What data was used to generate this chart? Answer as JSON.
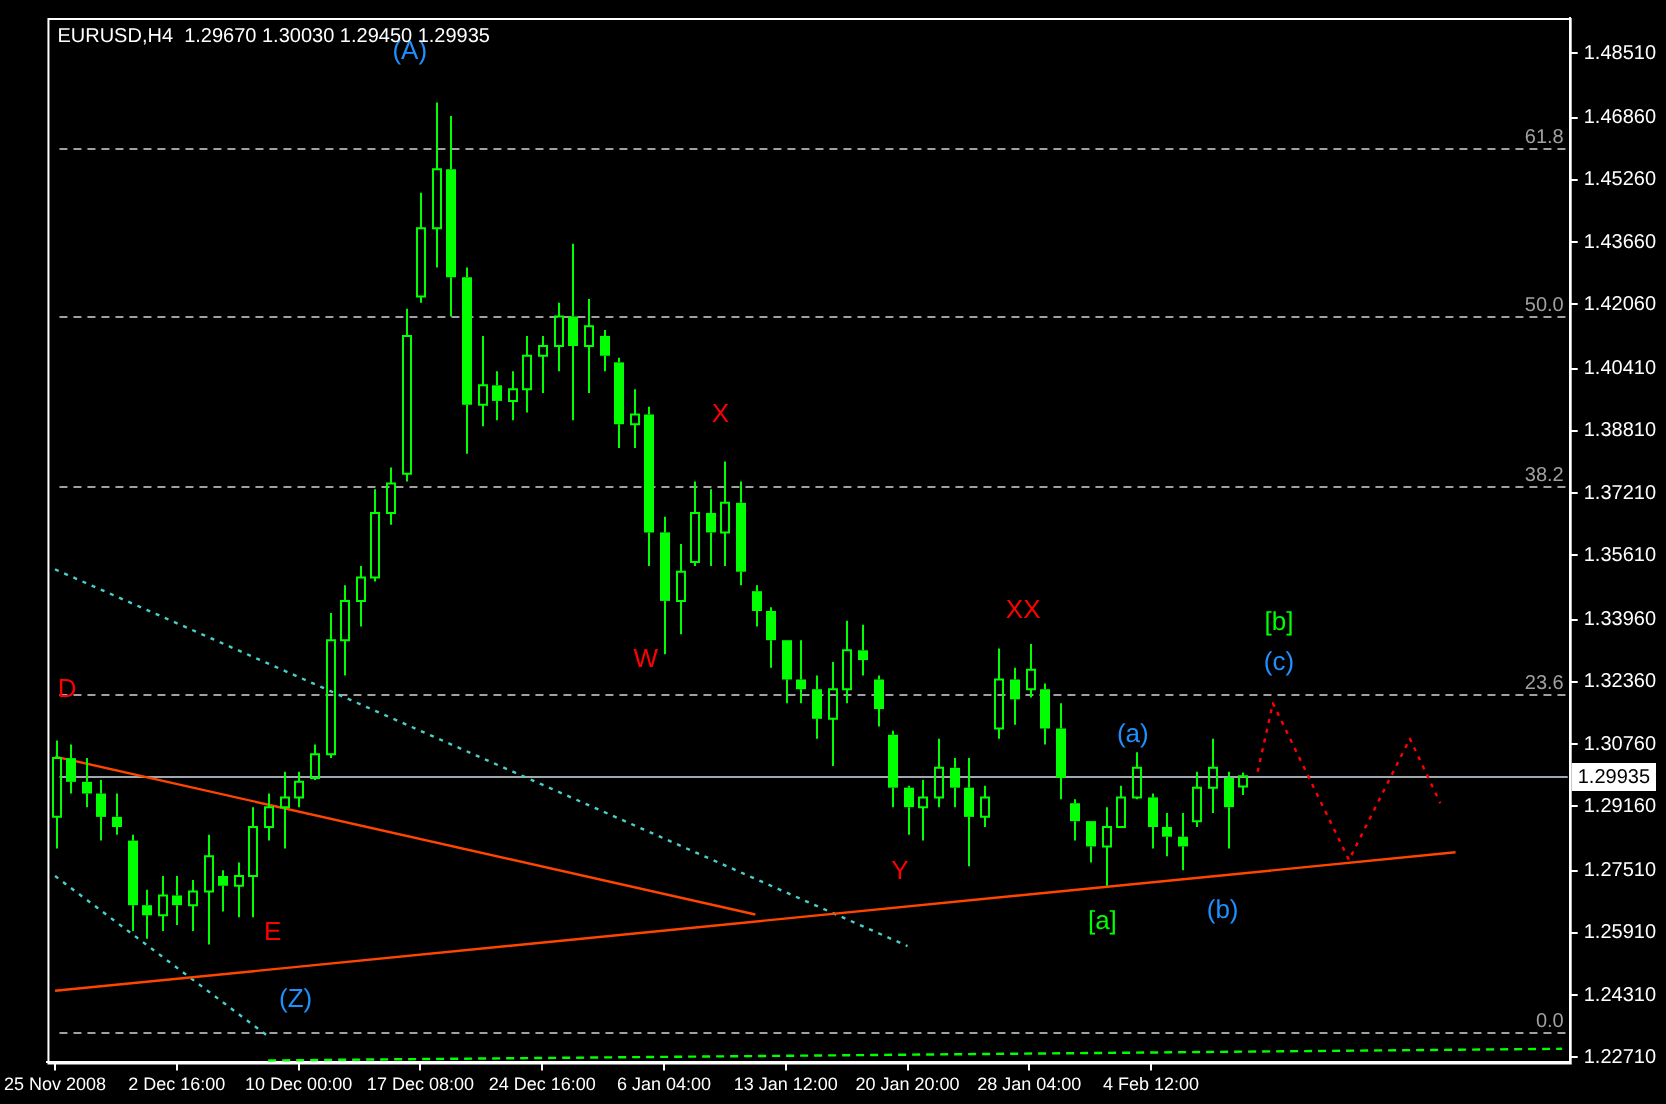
{
  "chart_data": {
    "type": "candlestick",
    "title": "EURUSD,H4  1.29670 1.30030 1.29450 1.29935",
    "color": "#00ff00",
    "categories": [
      "25 Nov 2008",
      null,
      null,
      null,
      null,
      null,
      null,
      null,
      "2 Dec 16:00",
      null,
      null,
      null,
      null,
      null,
      null,
      null,
      "10 Dec 00:00",
      null,
      null,
      null,
      null,
      null,
      null,
      null,
      "17 Dec 08:00",
      null,
      null,
      null,
      null,
      null,
      null,
      null,
      "24 Dec 16:00",
      null,
      null,
      null,
      null,
      null,
      null,
      null,
      "6 Jan 04:00",
      null,
      null,
      null,
      null,
      null,
      null,
      null,
      "13 Jan 12:00",
      null,
      null,
      null,
      null,
      null,
      null,
      null,
      "20 Jan 20:00",
      null,
      null,
      null,
      null,
      null,
      null,
      null,
      "28 Jan 04:00",
      null,
      null,
      null,
      null,
      null,
      null,
      null,
      "4 Feb 12:00",
      null,
      null,
      null,
      null,
      null,
      null,
      null,
      null,
      null,
      null,
      null,
      null,
      null,
      null,
      null,
      null,
      null,
      null,
      null,
      null,
      null,
      null,
      null,
      null,
      null,
      null,
      null
    ],
    "ohlc": [
      [
        1.2889,
        1.3085,
        1.2808,
        1.304
      ],
      [
        1.304,
        1.3075,
        1.2949,
        1.2979
      ],
      [
        1.2979,
        1.304,
        1.2914,
        1.2949
      ],
      [
        1.2949,
        1.2984,
        1.2828,
        1.2889
      ],
      [
        1.2889,
        1.2949,
        1.2843,
        1.2863
      ],
      [
        1.2828,
        1.2843,
        1.2596,
        1.2662
      ],
      [
        1.2662,
        1.2702,
        1.2576,
        1.2636
      ],
      [
        1.2636,
        1.2737,
        1.2596,
        1.2687
      ],
      [
        1.2687,
        1.2737,
        1.2611,
        1.2662
      ],
      [
        1.2662,
        1.2727,
        1.2596,
        1.2697
      ],
      [
        1.2697,
        1.2843,
        1.2561,
        1.2788
      ],
      [
        1.2737,
        1.2752,
        1.2646,
        1.2712
      ],
      [
        1.2712,
        1.2772,
        1.2631,
        1.2737
      ],
      [
        1.2737,
        1.2914,
        1.2631,
        1.2863
      ],
      [
        1.2863,
        1.2949,
        1.2828,
        1.2914
      ],
      [
        1.2914,
        1.3005,
        1.2808,
        1.2939
      ],
      [
        1.2939,
        1.3005,
        1.2914,
        1.2979
      ],
      [
        1.2989,
        1.3075,
        1.2984,
        1.305
      ],
      [
        1.305,
        1.3413,
        1.304,
        1.3343
      ],
      [
        1.3343,
        1.3484,
        1.3252,
        1.3444
      ],
      [
        1.3444,
        1.3534,
        1.3378,
        1.3504
      ],
      [
        1.3504,
        1.3731,
        1.3494,
        1.367
      ],
      [
        1.367,
        1.3787,
        1.364,
        1.3746
      ],
      [
        1.3771,
        1.4195,
        1.3751,
        1.4125
      ],
      [
        1.4226,
        1.4493,
        1.421,
        1.4402
      ],
      [
        1.4402,
        1.4725,
        1.4301,
        1.4553
      ],
      [
        1.4553,
        1.469,
        1.4175,
        1.4276
      ],
      [
        1.4276,
        1.4301,
        1.3822,
        1.3948
      ],
      [
        1.3948,
        1.4125,
        1.3893,
        1.3998
      ],
      [
        1.3998,
        1.4034,
        1.3908,
        1.3958
      ],
      [
        1.3958,
        1.4034,
        1.3908,
        1.3988
      ],
      [
        1.3988,
        1.4125,
        1.3928,
        1.4074
      ],
      [
        1.4074,
        1.4125,
        1.3978,
        1.4099
      ],
      [
        1.4099,
        1.421,
        1.4034,
        1.4175
      ],
      [
        1.4175,
        1.4362,
        1.3908,
        1.4099
      ],
      [
        1.4099,
        1.422,
        1.3978,
        1.415
      ],
      [
        1.4125,
        1.414,
        1.4034,
        1.4074
      ],
      [
        1.4057,
        1.4069,
        1.3837,
        1.3898
      ],
      [
        1.3898,
        1.3988,
        1.3837,
        1.3923
      ],
      [
        1.3923,
        1.3943,
        1.3534,
        1.362
      ],
      [
        1.362,
        1.366,
        1.3307,
        1.3444
      ],
      [
        1.3444,
        1.359,
        1.3358,
        1.3519
      ],
      [
        1.3544,
        1.3751,
        1.3534,
        1.367
      ],
      [
        1.367,
        1.3731,
        1.3534,
        1.362
      ],
      [
        1.362,
        1.3802,
        1.3534,
        1.3696
      ],
      [
        1.3696,
        1.3751,
        1.3484,
        1.3519
      ],
      [
        1.3469,
        1.3484,
        1.3378,
        1.3418
      ],
      [
        1.3418,
        1.3428,
        1.3272,
        1.3343
      ],
      [
        1.3343,
        1.3343,
        1.3181,
        1.3242
      ],
      [
        1.3242,
        1.3343,
        1.3181,
        1.3217
      ],
      [
        1.3217,
        1.3252,
        1.309,
        1.3141
      ],
      [
        1.3141,
        1.3287,
        1.302,
        1.3217
      ],
      [
        1.3217,
        1.3393,
        1.3181,
        1.3317
      ],
      [
        1.3317,
        1.3383,
        1.3252,
        1.3292
      ],
      [
        1.3242,
        1.3252,
        1.3121,
        1.3166
      ],
      [
        1.31,
        1.311,
        1.2914,
        1.2964
      ],
      [
        1.2964,
        1.2969,
        1.2843,
        1.2914
      ],
      [
        1.2914,
        1.2984,
        1.2828,
        1.2939
      ],
      [
        1.2939,
        1.309,
        1.2914,
        1.3015
      ],
      [
        1.3015,
        1.304,
        1.2914,
        1.2964
      ],
      [
        1.2964,
        1.304,
        1.2762,
        1.2889
      ],
      [
        1.2889,
        1.2969,
        1.2863,
        1.2939
      ],
      [
        1.3116,
        1.3322,
        1.309,
        1.3242
      ],
      [
        1.3242,
        1.3272,
        1.3126,
        1.3191
      ],
      [
        1.3217,
        1.3333,
        1.3196,
        1.3267
      ],
      [
        1.3217,
        1.3232,
        1.3075,
        1.3116
      ],
      [
        1.3116,
        1.3181,
        1.2934,
        1.2989
      ],
      [
        1.2924,
        1.2934,
        1.2828,
        1.2878
      ],
      [
        1.2878,
        1.2878,
        1.2772,
        1.2813
      ],
      [
        1.2813,
        1.2914,
        1.2712,
        1.2863
      ],
      [
        1.2863,
        1.2969,
        1.2863,
        1.2939
      ],
      [
        1.2939,
        1.3055,
        1.2934,
        1.3015
      ],
      [
        1.2939,
        1.2949,
        1.2808,
        1.2863
      ],
      [
        1.2863,
        1.2899,
        1.2788,
        1.2838
      ],
      [
        1.2838,
        1.2899,
        1.2752,
        1.2813
      ],
      [
        1.2878,
        1.3005,
        1.2863,
        1.2964
      ],
      [
        1.2964,
        1.309,
        1.2899,
        1.3015
      ],
      [
        1.2989,
        1.3005,
        1.2808,
        1.2914
      ],
      [
        1.2967,
        1.3003,
        1.2945,
        1.29935
      ],
      null,
      null,
      null,
      null,
      null,
      null,
      null,
      null,
      null,
      null,
      null,
      null,
      null,
      null,
      null,
      null,
      null,
      null,
      null,
      null,
      null
    ],
    "series": [
      {
        "type": "line",
        "color": "#ff4500",
        "line_style": "solid",
        "values": [
          1.3044,
          null,
          null,
          null,
          null,
          null,
          null,
          null,
          null,
          null,
          null,
          null,
          null,
          null,
          null,
          null,
          null,
          null,
          null,
          null,
          null,
          null,
          null,
          null,
          null,
          null,
          null,
          null,
          null,
          null,
          null,
          null,
          null,
          null,
          null,
          null,
          null,
          null,
          null,
          null,
          null,
          null,
          null,
          null,
          null,
          null,
          1.2638,
          null,
          null,
          null,
          null,
          null,
          null,
          null,
          null,
          null,
          null,
          null,
          null,
          null,
          null,
          null,
          null,
          null,
          null,
          null,
          null,
          null,
          null,
          null,
          null,
          null,
          null,
          null,
          null,
          null,
          null,
          null,
          null,
          null,
          null,
          null,
          null,
          null,
          null,
          null,
          null,
          null,
          null,
          null,
          null,
          null,
          null,
          null,
          null,
          null,
          null,
          null,
          null,
          null
        ]
      },
      {
        "type": "line",
        "color": "#ff4500",
        "line_style": "solid",
        "values": [
          1.2442,
          null,
          null,
          null,
          null,
          null,
          null,
          null,
          null,
          null,
          null,
          null,
          null,
          null,
          null,
          null,
          null,
          null,
          null,
          null,
          null,
          null,
          null,
          null,
          null,
          null,
          null,
          null,
          null,
          null,
          null,
          null,
          null,
          null,
          null,
          null,
          null,
          null,
          null,
          null,
          null,
          null,
          null,
          null,
          null,
          null,
          null,
          null,
          null,
          null,
          null,
          null,
          null,
          null,
          null,
          null,
          null,
          null,
          null,
          null,
          null,
          null,
          null,
          null,
          null,
          null,
          null,
          null,
          null,
          null,
          null,
          null,
          null,
          null,
          null,
          null,
          null,
          null,
          null,
          null,
          null,
          null,
          null,
          null,
          null,
          null,
          null,
          null,
          null,
          null,
          null,
          null,
          1.2798,
          null,
          null,
          null,
          null,
          null,
          null,
          null
        ]
      },
      {
        "type": "line",
        "color": "#48d1cc",
        "line_style": "dotted",
        "values": [
          1.3525,
          null,
          null,
          null,
          null,
          null,
          null,
          null,
          null,
          null,
          null,
          null,
          null,
          null,
          null,
          null,
          null,
          null,
          null,
          null,
          null,
          null,
          null,
          null,
          null,
          null,
          null,
          null,
          null,
          null,
          null,
          null,
          null,
          null,
          null,
          null,
          null,
          null,
          null,
          null,
          null,
          null,
          null,
          null,
          null,
          null,
          null,
          null,
          null,
          null,
          null,
          null,
          null,
          null,
          null,
          null,
          1.2557,
          null,
          null,
          null,
          null,
          null,
          null,
          null,
          null,
          null,
          null,
          null,
          null,
          null,
          null,
          null,
          null,
          null,
          null,
          null,
          null,
          null,
          null,
          null,
          null,
          null,
          null,
          null,
          null,
          null,
          null,
          null,
          null,
          null,
          null,
          null,
          null,
          null,
          null,
          null,
          null,
          null,
          null,
          null
        ]
      },
      {
        "type": "line",
        "color": "#48d1cc",
        "line_style": "dotted",
        "values": [
          1.2737,
          null,
          null,
          null,
          null,
          null,
          null,
          null,
          null,
          null,
          null,
          null,
          null,
          null,
          1.2325,
          null,
          null,
          null,
          null,
          null,
          null,
          null,
          null,
          null,
          null,
          null,
          null,
          null,
          null,
          null,
          null,
          null,
          null,
          null,
          null,
          null,
          null,
          null,
          null,
          null,
          null,
          null,
          null,
          null,
          null,
          null,
          null,
          null,
          null,
          null,
          null,
          null,
          null,
          null,
          null,
          null,
          null,
          null,
          null,
          null,
          null,
          null,
          null,
          null,
          null,
          null,
          null,
          null,
          null,
          null,
          null,
          null,
          null,
          null,
          null,
          null,
          null,
          null,
          null,
          null,
          null,
          null,
          null,
          null,
          null,
          null,
          null,
          null,
          null,
          null,
          null,
          null,
          null,
          null,
          null,
          null,
          null,
          null,
          null,
          null
        ]
      },
      {
        "type": "line",
        "color": "#00ff00",
        "line_style": "dashed",
        "values": [
          null,
          null,
          null,
          null,
          null,
          null,
          null,
          null,
          null,
          null,
          null,
          null,
          null,
          null,
          1.2263,
          null,
          null,
          null,
          null,
          null,
          null,
          null,
          null,
          null,
          null,
          null,
          null,
          null,
          null,
          null,
          null,
          null,
          null,
          null,
          null,
          null,
          null,
          null,
          null,
          null,
          null,
          null,
          null,
          null,
          null,
          null,
          null,
          null,
          null,
          null,
          null,
          null,
          null,
          null,
          null,
          null,
          null,
          null,
          null,
          null,
          null,
          null,
          null,
          null,
          null,
          null,
          null,
          null,
          null,
          null,
          null,
          null,
          null,
          null,
          null,
          null,
          null,
          null,
          null,
          null,
          null,
          null,
          null,
          null,
          null,
          null,
          null,
          null,
          null,
          null,
          null,
          null,
          null,
          null,
          null,
          null,
          null,
          null,
          null,
          1.2293
        ]
      },
      {
        "type": "line",
        "color": "#ff0000",
        "line_style": "dotted",
        "values": [
          null,
          null,
          null,
          null,
          null,
          null,
          null,
          null,
          null,
          null,
          null,
          null,
          null,
          null,
          null,
          null,
          null,
          null,
          null,
          null,
          null,
          null,
          null,
          null,
          null,
          null,
          null,
          null,
          null,
          null,
          null,
          null,
          null,
          null,
          null,
          null,
          null,
          null,
          null,
          null,
          null,
          null,
          null,
          null,
          null,
          null,
          null,
          null,
          null,
          null,
          null,
          null,
          null,
          null,
          null,
          null,
          null,
          null,
          null,
          null,
          null,
          null,
          null,
          null,
          null,
          null,
          null,
          null,
          null,
          null,
          null,
          null,
          null,
          null,
          null,
          null,
          null,
          null,
          null,
          1.3005,
          1.3181,
          null,
          null,
          null,
          null,
          1.2778,
          null,
          null,
          null,
          1.309,
          null,
          1.2924,
          null,
          null,
          null,
          null,
          null,
          null,
          null,
          null
        ]
      }
    ],
    "ylim": [
      1.2258,
      1.4942
    ],
    "yticks": [
      {
        "value": 1.2271,
        "label": "1.22710"
      },
      {
        "value": 1.2431,
        "label": "1.24310"
      },
      {
        "value": 1.2591,
        "label": "1.25910"
      },
      {
        "value": 1.2751,
        "label": "1.27510"
      },
      {
        "value": 1.2916,
        "label": "1.29160"
      },
      {
        "value": 1.3076,
        "label": "1.30760"
      },
      {
        "value": 1.3236,
        "label": "1.32360"
      },
      {
        "value": 1.3396,
        "label": "1.33960"
      },
      {
        "value": 1.3561,
        "label": "1.35610"
      },
      {
        "value": 1.3721,
        "label": "1.37210"
      },
      {
        "value": 1.3881,
        "label": "1.38810"
      },
      {
        "value": 1.4041,
        "label": "1.40410"
      },
      {
        "value": 1.4206,
        "label": "1.42060"
      },
      {
        "value": 1.4366,
        "label": "1.43660"
      },
      {
        "value": 1.4526,
        "label": "1.45260"
      },
      {
        "value": 1.4686,
        "label": "1.46860"
      },
      {
        "value": 1.4851,
        "label": "1.48510"
      }
    ],
    "y2lim": [
      -2.07,
      70.87
    ],
    "ref_lines": [
      {
        "axis": "y2",
        "value": 61.8,
        "label": "61.8",
        "color": "#a0a0a0",
        "line_style": "dashed"
      },
      {
        "axis": "y2",
        "value": 50.0,
        "label": "50.0",
        "color": "#a0a0a0",
        "line_style": "dashed"
      },
      {
        "axis": "y2",
        "value": 38.2,
        "label": "38.2",
        "color": "#a0a0a0",
        "line_style": "dashed"
      },
      {
        "axis": "y2",
        "value": 23.6,
        "label": "23.6",
        "color": "#a0a0a0",
        "line_style": "dashed"
      },
      {
        "axis": "y2",
        "value": 0.0,
        "label": "0.0",
        "color": "#a0a0a0",
        "line_style": "dashed"
      },
      {
        "axis": "y",
        "value": 1.29935,
        "label": "1.29935",
        "color": "#a0a8b0",
        "line_style": "solid"
      }
    ],
    "annotations": [
      "(A)",
      "D",
      "E",
      "(Z)",
      "W",
      "X",
      "Y",
      "XX",
      "(a)",
      "[a]",
      "(b)",
      "[b]",
      "(c)"
    ],
    "grid": false,
    "legend": false,
    "marker": "none"
  }
}
